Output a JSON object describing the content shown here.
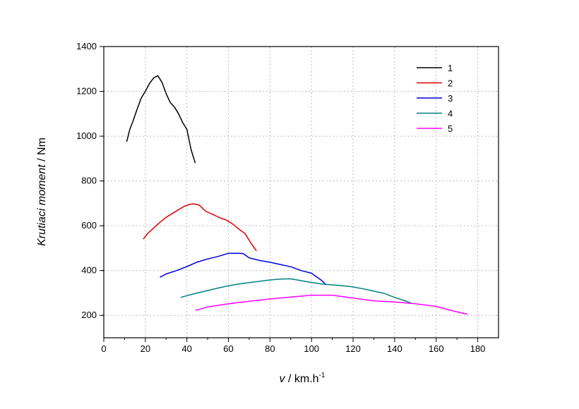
{
  "chart_data": {
    "type": "line",
    "title": "",
    "xlabel": {
      "var": "v",
      "unit": " / km.h",
      "sup": "-1"
    },
    "ylabel": {
      "italic": "Krutiaci moment",
      "unit": " / Nm"
    },
    "xlim": [
      0,
      190
    ],
    "ylim": [
      100,
      1400
    ],
    "xticks": [
      0,
      20,
      40,
      60,
      80,
      100,
      120,
      140,
      160,
      180
    ],
    "yticks": [
      200,
      400,
      600,
      800,
      1000,
      1200,
      1400
    ],
    "xtick_labels": [
      "0",
      "20",
      "40",
      "60",
      "80",
      "100",
      "120",
      "140",
      "160",
      "180"
    ],
    "ytick_labels": [
      "200",
      "400",
      "600",
      "800",
      "1000",
      "1200",
      "1400"
    ],
    "grid": true,
    "legend_position": "top-right",
    "series": [
      {
        "name": "1",
        "color": "#000000",
        "x": [
          11,
          12.5,
          14,
          16,
          18,
          20,
          22,
          24,
          26,
          28,
          30,
          32,
          34,
          36,
          38,
          40,
          42,
          44
        ],
        "y": [
          975,
          1030,
          1065,
          1120,
          1170,
          1200,
          1235,
          1260,
          1270,
          1240,
          1190,
          1150,
          1130,
          1100,
          1060,
          1030,
          940,
          880
        ]
      },
      {
        "name": "2",
        "color": "#e00000",
        "x": [
          19,
          21,
          24,
          27,
          30,
          33,
          36,
          39,
          41,
          43,
          46,
          49,
          52,
          56,
          59,
          62,
          65,
          68,
          71,
          73.5
        ],
        "y": [
          540,
          565,
          590,
          615,
          638,
          655,
          672,
          688,
          695,
          698,
          692,
          665,
          652,
          635,
          625,
          608,
          585,
          565,
          520,
          488
        ]
      },
      {
        "name": "3",
        "color": "#0000e0",
        "x": [
          27,
          30,
          35,
          40,
          45,
          50,
          55,
          60,
          65,
          67,
          70,
          75,
          80,
          85,
          90,
          95,
          100,
          105,
          107
        ],
        "y": [
          370,
          385,
          400,
          418,
          438,
          452,
          463,
          477,
          477,
          476,
          457,
          445,
          437,
          427,
          417,
          400,
          388,
          355,
          336
        ]
      },
      {
        "name": "4",
        "color": "#008080",
        "x": [
          37,
          40,
          45,
          50,
          55,
          60,
          65,
          70,
          75,
          80,
          85,
          90,
          95,
          100,
          105,
          110,
          115,
          120,
          125,
          130,
          135,
          140,
          145,
          148
        ],
        "y": [
          280,
          288,
          300,
          311,
          322,
          332,
          340,
          346,
          352,
          358,
          362,
          363,
          355,
          347,
          340,
          336,
          332,
          327,
          318,
          308,
          298,
          280,
          265,
          255
        ]
      },
      {
        "name": "5",
        "color": "#ff00ff",
        "x": [
          44,
          50,
          60,
          70,
          80,
          90,
          100,
          110,
          120,
          130,
          140,
          150,
          160,
          168,
          175
        ],
        "y": [
          222,
          238,
          252,
          263,
          273,
          282,
          290,
          290,
          277,
          265,
          260,
          252,
          240,
          220,
          205
        ]
      }
    ]
  }
}
